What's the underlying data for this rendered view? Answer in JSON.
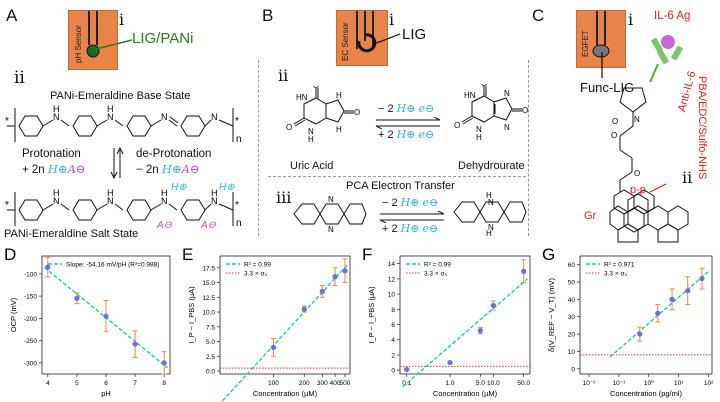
{
  "panels": {
    "A": {
      "label": "A",
      "inset_roman": "i",
      "sensor_text": "pH Sensor",
      "electrode_label": "LIG/PANi",
      "roman2": "ii",
      "base_state": "PANi-Emeraldine Base State",
      "salt_state": "PANi-Emeraldine Salt State",
      "protonation": "Protonation",
      "protonation_eq": "+ 2n",
      "deprotonation": "de-Protonation",
      "deprotonation_eq": "− 2n",
      "h": "H⊕",
      "a": "A⊖",
      "n": "n",
      "nh": "N",
      "h_atom": "H",
      "star": "*"
    },
    "B": {
      "label": "B",
      "inset_roman": "i",
      "sensor_text": "EC Sensor",
      "electrode_label": "LIG",
      "roman2": "ii",
      "roman3": "iii",
      "minus": "− 2",
      "plus": "+ 2",
      "h": "H⊕",
      "e": "e⊖",
      "uric": "Uric Acid",
      "dehydro": "Dehydrourate",
      "pca": "PCA Electron Transfer"
    },
    "C": {
      "label": "C",
      "inset_roman": "i",
      "sensor_text": "EGFET",
      "electrode_label": "Func-LIG",
      "il6": "IL-6 Ag",
      "anti": "Anti-IL-6",
      "linker": "PBA/EDC/Sulfo-NHS",
      "roman2": "ii",
      "pp": "p-p",
      "gr": "Gr"
    }
  },
  "chart_data": [
    {
      "panel": "D",
      "type": "scatter",
      "x": [
        4,
        5,
        6,
        7,
        8
      ],
      "y": [
        -85,
        -155,
        -195,
        -258,
        -300
      ],
      "yerr": [
        22,
        12,
        35,
        30,
        25
      ],
      "fit_label": "Slope: -54.16 mV/pH (R²=0.988)",
      "xlabel": "pH",
      "ylabel": "OCP (mV)",
      "xticks": [
        "4",
        "5",
        "6",
        "7",
        "8"
      ],
      "yticks": [
        "-100",
        "-150",
        "-200",
        "-250",
        "-300"
      ],
      "xlim": [
        3.8,
        8.2
      ],
      "ylim": [
        -325,
        -60
      ]
    },
    {
      "panel": "E",
      "type": "scatter",
      "x": [
        100,
        200,
        300,
        400,
        500
      ],
      "y": [
        4.0,
        10.5,
        13.5,
        16.0,
        17.0
      ],
      "yerr": [
        1.5,
        0.5,
        1.0,
        1.5,
        2.0
      ],
      "fit_label": "R² = 0.99",
      "lod_label": "3.3 × σ₀",
      "lod": 0.5,
      "xlabel": "Concentration (µM)",
      "ylabel": "I_P − I_PBS (µA)",
      "xticks": [
        "100",
        "200",
        "300",
        "400",
        "500"
      ],
      "yticks": [
        "0.0",
        "2.5",
        "5.0",
        "7.5",
        "10.0",
        "12.5",
        "15.0",
        "17.5"
      ],
      "xscale": "log",
      "xlim": [
        30,
        560
      ],
      "ylim": [
        -0.5,
        19.5
      ]
    },
    {
      "panel": "F",
      "type": "scatter",
      "x": [
        0.1,
        1,
        5,
        10,
        50
      ],
      "y": [
        0.1,
        1.0,
        5.2,
        8.5,
        13.0
      ],
      "yerr": [
        0.1,
        0.1,
        0.4,
        0.6,
        1.5
      ],
      "fit_label": "R² = 0.99",
      "lod_label": "3.3 × σ₀",
      "lod": 0.5,
      "xlabel": "Concentration (µM)",
      "ylabel": "I_P − I_PBS (µA)",
      "xticks": [
        "0.1",
        "1.0",
        "5.0",
        "10.0",
        "50.0"
      ],
      "yticks": [
        "0",
        "2",
        "4",
        "6",
        "8",
        "10",
        "12",
        "14"
      ],
      "xscale": "log",
      "xlim": [
        0.07,
        70
      ],
      "ylim": [
        -0.5,
        15
      ]
    },
    {
      "panel": "G",
      "type": "scatter",
      "x": [
        0.5,
        2,
        6,
        20,
        60
      ],
      "y": [
        20,
        32,
        40,
        45,
        52
      ],
      "yerr": [
        4,
        5,
        6,
        8,
        6
      ],
      "fit_label": "R² = 0.971",
      "lod_label": "3.3 × σ₀",
      "lod": 8,
      "xlabel": "Concentration (pg/ml)",
      "ylabel": "δ(V_REF − V_T) (mV)",
      "xticks": [
        "10⁻²",
        "10⁻¹",
        "10⁰",
        "10¹",
        "10²"
      ],
      "yticks": [
        "0",
        "10",
        "20",
        "30",
        "40",
        "50",
        "60"
      ],
      "xscale": "log",
      "xlim": [
        0.005,
        130
      ],
      "ylim": [
        -3,
        65
      ]
    }
  ],
  "plot_labels": [
    "D",
    "E",
    "F",
    "G"
  ],
  "colors": {
    "points": "#6a70e0",
    "fit": "#2ec4a4",
    "lod": "#d33",
    "err": "#e8894a",
    "sensor": "#e8834a"
  }
}
